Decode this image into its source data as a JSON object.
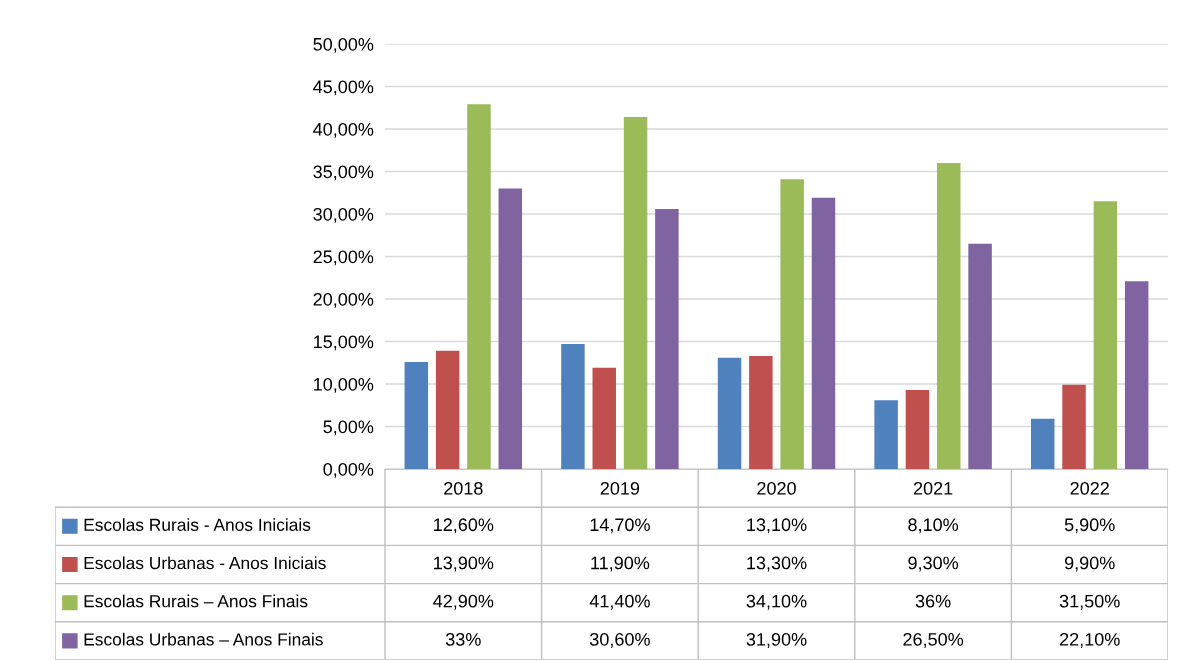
{
  "chart_data": {
    "type": "bar",
    "categories": [
      "2018",
      "2019",
      "2020",
      "2021",
      "2022"
    ],
    "series": [
      {
        "name": "Escolas Rurais - Anos Iniciais",
        "color": "#4f81bd",
        "values": [
          12.6,
          14.7,
          13.1,
          8.1,
          5.9
        ],
        "value_labels": [
          "12,60%",
          "14,70%",
          "13,10%",
          "8,10%",
          "5,90%"
        ]
      },
      {
        "name": "Escolas Urbanas - Anos Iniciais",
        "color": "#c0504d",
        "values": [
          13.9,
          11.9,
          13.3,
          9.3,
          9.9
        ],
        "value_labels": [
          "13,90%",
          "11,90%",
          "13,30%",
          "9,30%",
          "9,90%"
        ]
      },
      {
        "name": "Escolas Rurais – Anos Finais",
        "color": "#9bbb59",
        "values": [
          42.9,
          41.4,
          34.1,
          36,
          31.5
        ],
        "value_labels": [
          "42,90%",
          "41,40%",
          "34,10%",
          "36%",
          "31,50%"
        ]
      },
      {
        "name": "Escolas Urbanas – Anos Finais",
        "color": "#8064a2",
        "values": [
          33,
          30.6,
          31.9,
          26.5,
          22.1
        ],
        "value_labels": [
          "33%",
          "30,60%",
          "31,90%",
          "26,50%",
          "22,10%"
        ]
      }
    ],
    "ylim": [
      0,
      50
    ],
    "yticks": [
      {
        "value": 0,
        "label": "0,00%"
      },
      {
        "value": 5,
        "label": "5,00%"
      },
      {
        "value": 10,
        "label": "10,00%"
      },
      {
        "value": 15,
        "label": "15,00%"
      },
      {
        "value": 20,
        "label": "20,00%"
      },
      {
        "value": 25,
        "label": "25,00%"
      },
      {
        "value": 30,
        "label": "30,00%"
      },
      {
        "value": 35,
        "label": "35,00%"
      },
      {
        "value": 40,
        "label": "40,00%"
      },
      {
        "value": 45,
        "label": "45,00%"
      },
      {
        "value": 50,
        "label": "50,00%"
      }
    ],
    "grid": "y",
    "legend": "bottom left"
  }
}
